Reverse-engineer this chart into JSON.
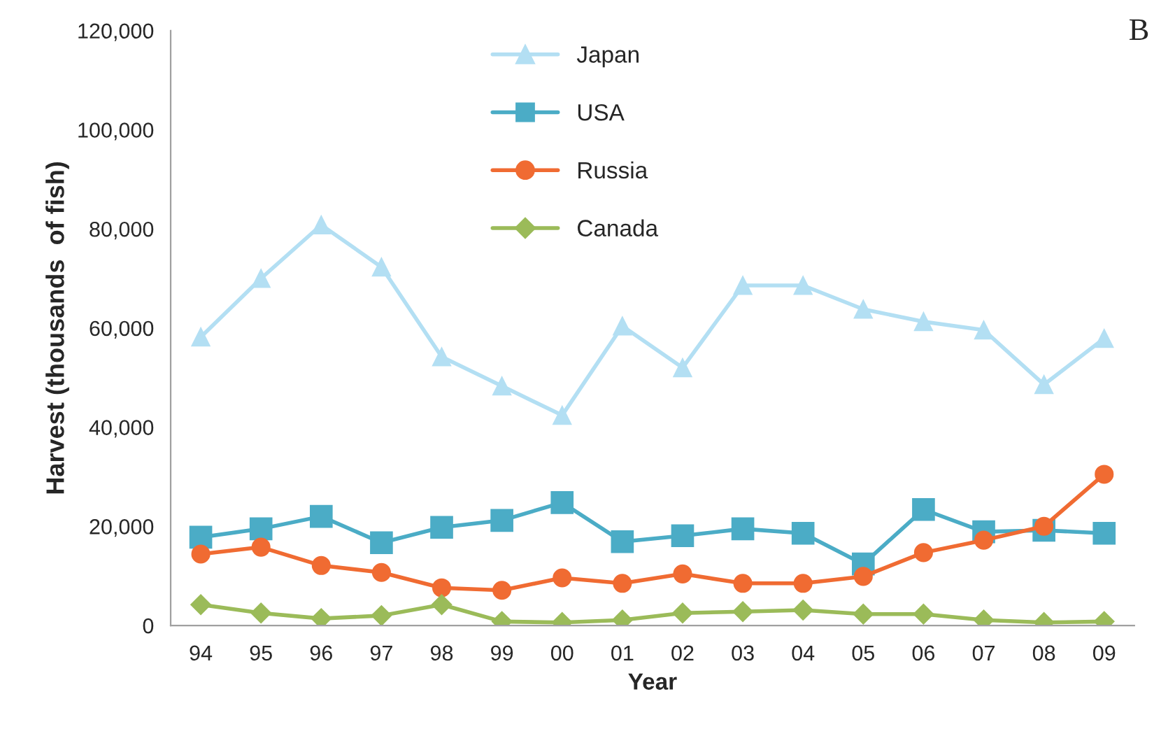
{
  "chart_data": {
    "type": "line",
    "xlabel": "Year",
    "ylabel": "Harvest (thousands  of fish)",
    "annotations": [
      "B"
    ],
    "categories": [
      "94",
      "95",
      "96",
      "97",
      "98",
      "99",
      "00",
      "01",
      "02",
      "03",
      "04",
      "05",
      "06",
      "07",
      "08",
      "09"
    ],
    "ylim": [
      0,
      120000
    ],
    "yticks": [
      {
        "value": 0,
        "label": "0"
      },
      {
        "value": 20000,
        "label": "20,000"
      },
      {
        "value": 40000,
        "label": "40,000"
      },
      {
        "value": 60000,
        "label": "60,000"
      },
      {
        "value": 80000,
        "label": "80,000"
      },
      {
        "value": 100000,
        "label": "100,000"
      },
      {
        "value": 120000,
        "label": "120,000"
      }
    ],
    "grid": false,
    "legend": "top",
    "line_style": "solid",
    "series": [
      {
        "name": "Japan",
        "color": "#b3dff3",
        "marker": "triangle",
        "values": [
          58200,
          70000,
          80800,
          72300,
          54200,
          48300,
          42400,
          60400,
          52000,
          68600,
          68600,
          63800,
          61300,
          59600,
          48600,
          57900
        ]
      },
      {
        "name": "USA",
        "color": "#4bacc6",
        "marker": "square",
        "values": [
          17800,
          19500,
          22000,
          16700,
          19800,
          21200,
          24800,
          16900,
          18100,
          19500,
          18600,
          12400,
          23400,
          18900,
          19200,
          18600
        ]
      },
      {
        "name": "Russia",
        "color": "#f06b32",
        "marker": "circle",
        "values": [
          14400,
          15800,
          12100,
          10700,
          7600,
          7100,
          9600,
          8500,
          10400,
          8500,
          8500,
          9900,
          14700,
          17200,
          20000,
          30500
        ]
      },
      {
        "name": "Canada",
        "color": "#9bbb59",
        "marker": "diamond",
        "values": [
          4200,
          2500,
          1400,
          2000,
          4200,
          800,
          600,
          1100,
          2500,
          2800,
          3100,
          2300,
          2300,
          1100,
          600,
          800
        ]
      }
    ]
  }
}
